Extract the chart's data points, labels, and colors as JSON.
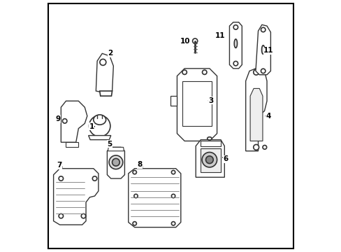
{
  "bg_color": "#ffffff",
  "border_color": "#000000",
  "line_color": "#000000",
  "part_fill": "#ffffff",
  "part_edge": "#333333",
  "label_color": "#000000"
}
